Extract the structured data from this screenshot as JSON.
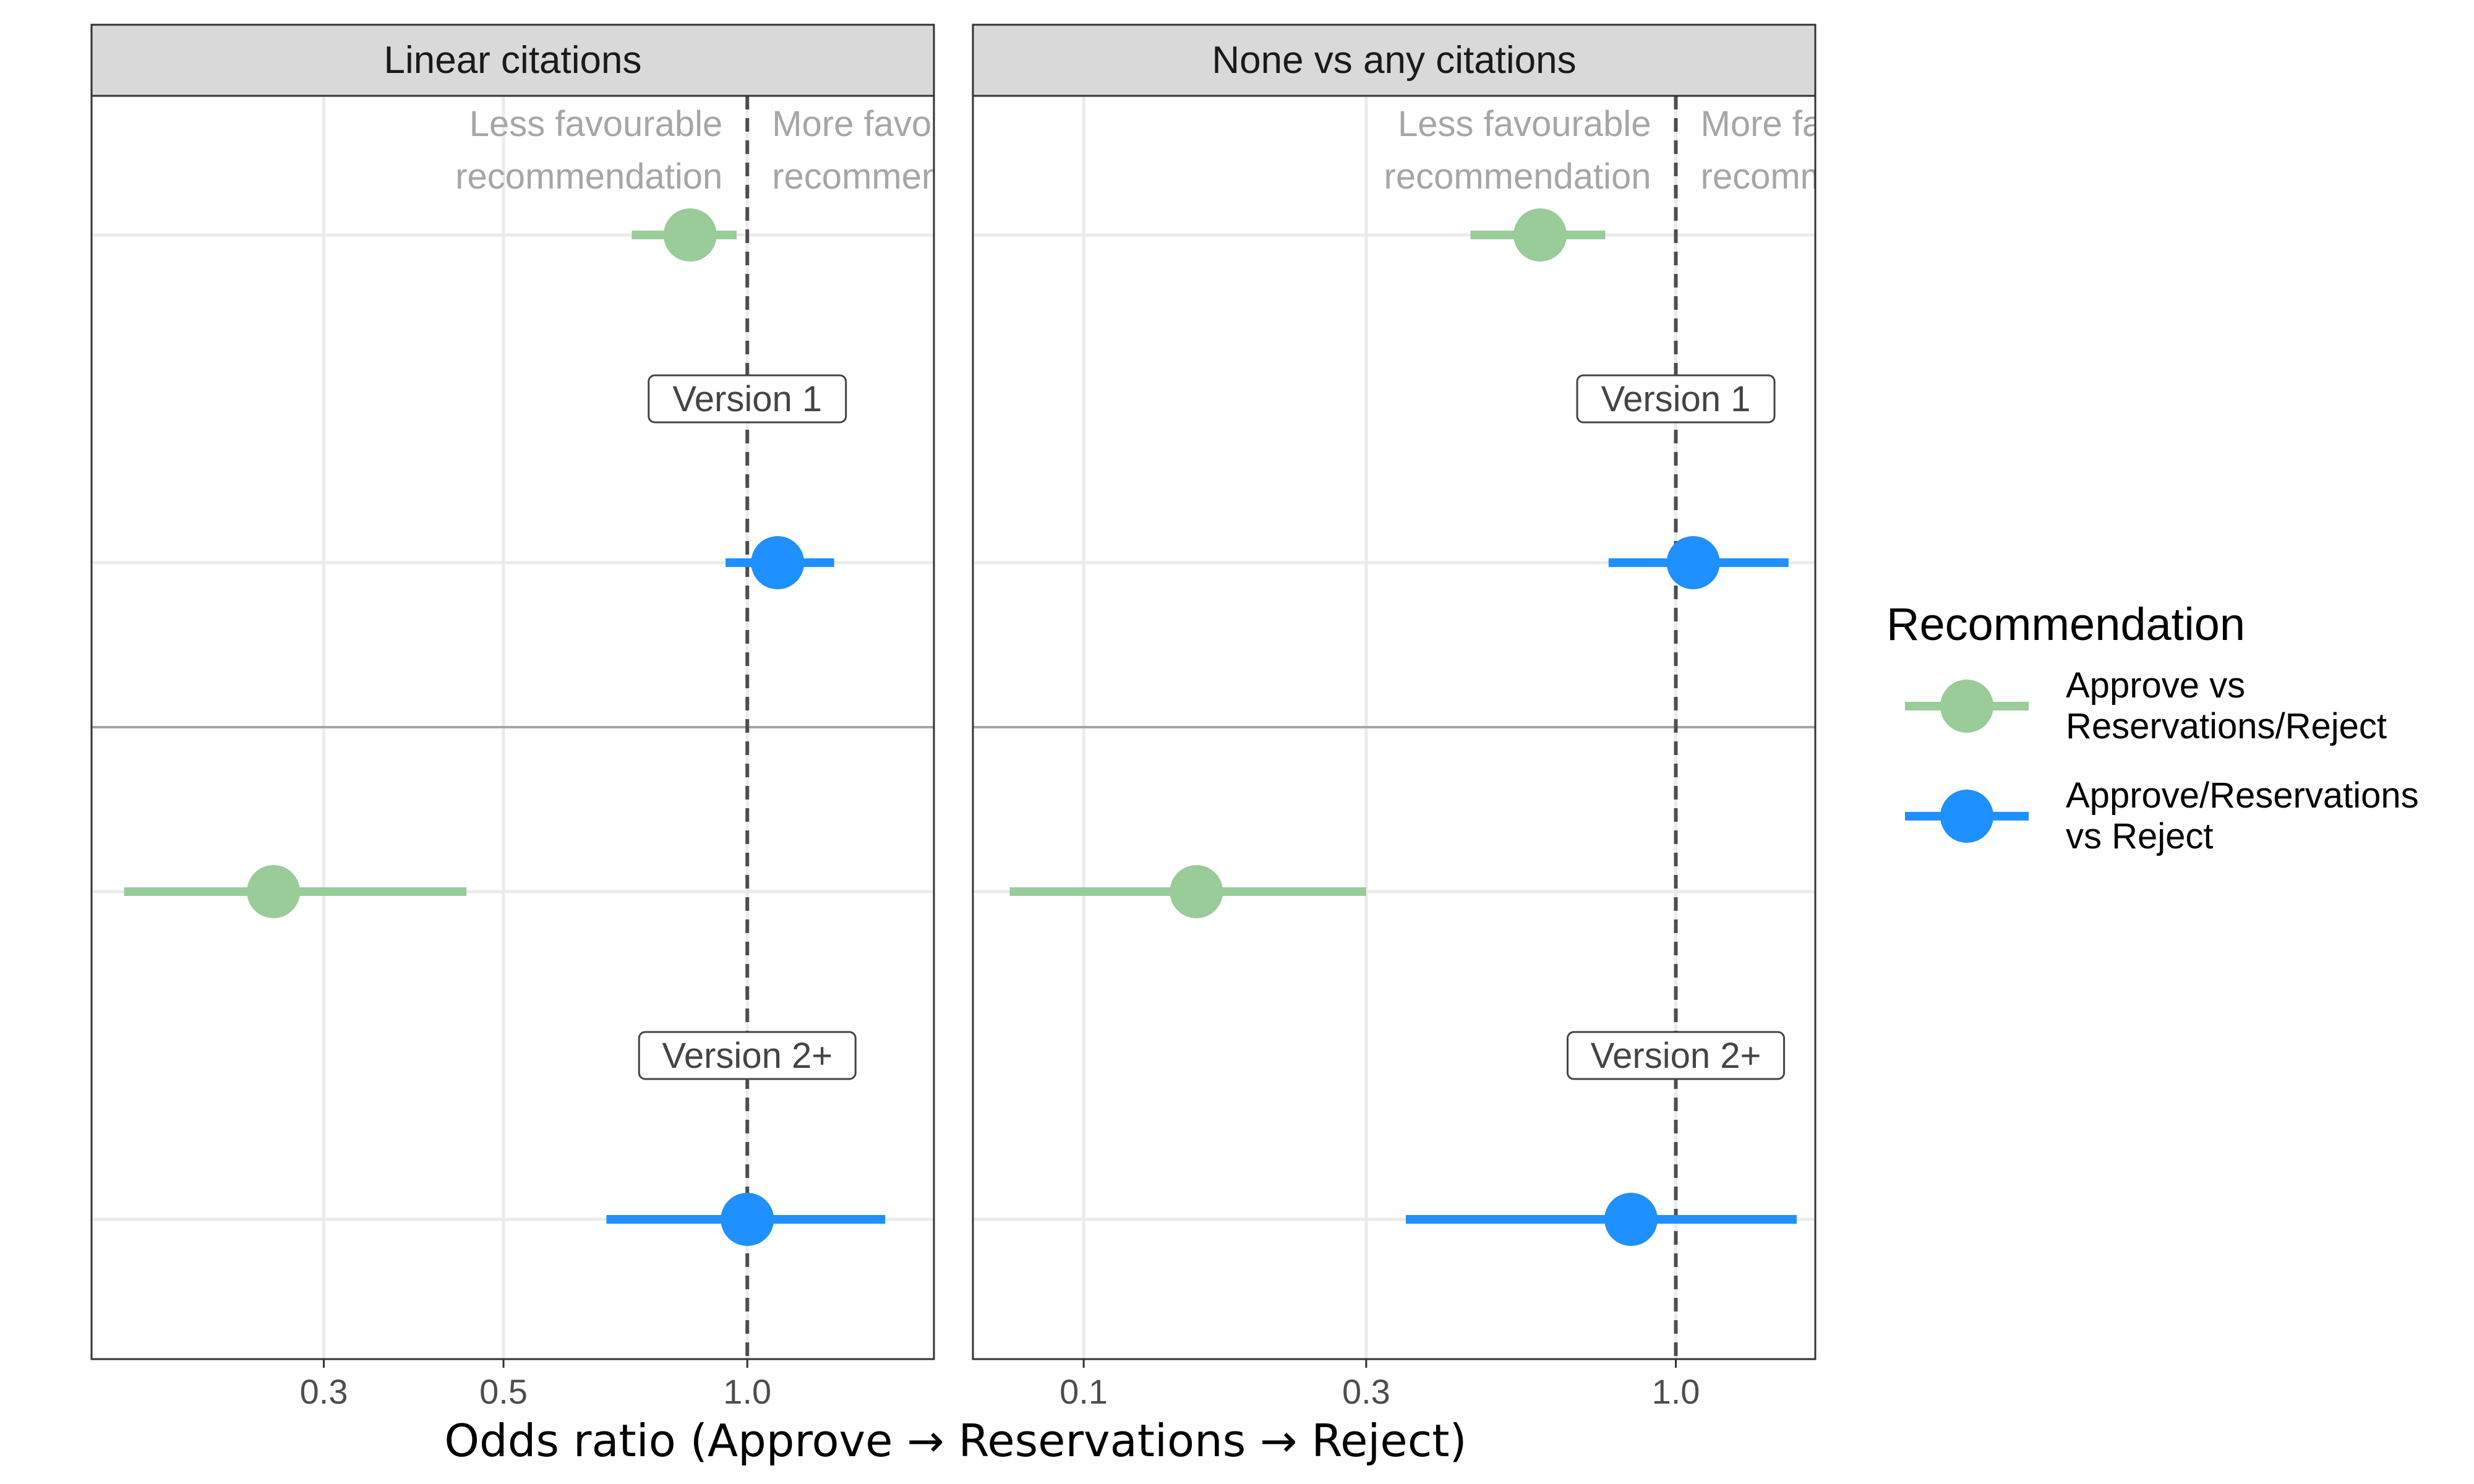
{
  "chart_data": {
    "type": "scatter",
    "xlabel": "Odds ratio (Approve → Reservations → Reject)",
    "x_scale": "log",
    "grid": true,
    "legend": {
      "title": "Recommendation",
      "placement": "right",
      "entries": [
        {
          "key": "approve_vs_res_reject",
          "lines": [
            "Approve vs",
            "Reservations/Reject"
          ],
          "color": "#99CC99"
        },
        {
          "key": "approve_res_vs_reject",
          "lines": [
            "Approve/Reservations",
            "vs Reject"
          ],
          "color": "#1E90FF"
        }
      ]
    },
    "annotations": {
      "left": [
        "Less favourable",
        "recommendation"
      ],
      "right": [
        "More favourable",
        "recommendation"
      ]
    },
    "groups": [
      "Version 1",
      "Version 2+"
    ],
    "panels": [
      {
        "title": "Linear citations",
        "xlim": [
          0.155,
          1.7
        ],
        "ticks": [
          {
            "value": 0.3,
            "label": "0.3"
          },
          {
            "value": 0.5,
            "label": "0.5"
          },
          {
            "value": 1.0,
            "label": "1.0"
          }
        ],
        "points": [
          {
            "group": "Version 1",
            "series": "approve_vs_res_reject",
            "estimate": 0.85,
            "lower": 0.72,
            "upper": 0.97
          },
          {
            "group": "Version 1",
            "series": "approve_res_vs_reject",
            "estimate": 1.09,
            "lower": 0.94,
            "upper": 1.28
          },
          {
            "group": "Version 2+",
            "series": "approve_vs_res_reject",
            "estimate": 0.26,
            "lower": 0.17,
            "upper": 0.45
          },
          {
            "group": "Version 2+",
            "series": "approve_res_vs_reject",
            "estimate": 1.0,
            "lower": 0.67,
            "upper": 1.48
          }
        ]
      },
      {
        "title": "None vs any citations",
        "xlim": [
          0.065,
          1.72
        ],
        "ticks": [
          {
            "value": 0.1,
            "label": "0.1"
          },
          {
            "value": 0.3,
            "label": "0.3"
          },
          {
            "value": 1.0,
            "label": "1.0"
          }
        ],
        "points": [
          {
            "group": "Version 1",
            "series": "approve_vs_res_reject",
            "estimate": 0.59,
            "lower": 0.45,
            "upper": 0.76
          },
          {
            "group": "Version 1",
            "series": "approve_res_vs_reject",
            "estimate": 1.07,
            "lower": 0.77,
            "upper": 1.55
          },
          {
            "group": "Version 2+",
            "series": "approve_vs_res_reject",
            "estimate": 0.155,
            "lower": 0.075,
            "upper": 0.3
          },
          {
            "group": "Version 2+",
            "series": "approve_res_vs_reject",
            "estimate": 0.84,
            "lower": 0.35,
            "upper": 1.6
          }
        ]
      }
    ]
  }
}
